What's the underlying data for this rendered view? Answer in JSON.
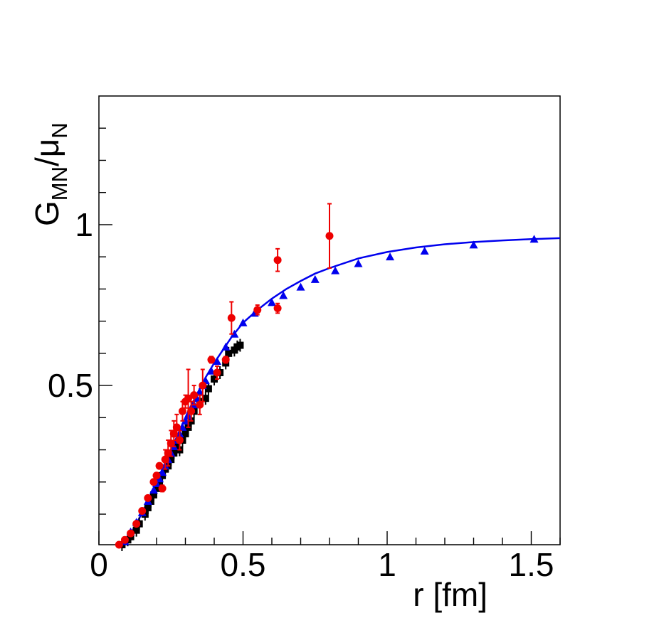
{
  "chart_data": {
    "type": "scatter",
    "title": "",
    "xlabel": "r [fm]",
    "ylabel": {
      "main": "G",
      "sub1": "MN",
      "slash": "/",
      "mu": "μ",
      "sub2": "N"
    },
    "xlim": [
      0,
      1.6
    ],
    "ylim": [
      0.005,
      1.4
    ],
    "x_ticks": [
      0,
      0.5,
      1,
      1.5
    ],
    "x_tick_labels": [
      "0",
      "0.5",
      "1",
      "1.5"
    ],
    "y_ticks": [
      0.5,
      1
    ],
    "y_tick_labels": [
      "0.5",
      "1"
    ],
    "grid": false,
    "series": [
      {
        "name": "fit",
        "kind": "line",
        "color": "#0000ee",
        "x": [
          0.07,
          0.09,
          0.11,
          0.13,
          0.15,
          0.17,
          0.19,
          0.21,
          0.23,
          0.25,
          0.27,
          0.29,
          0.31,
          0.33,
          0.35,
          0.37,
          0.4,
          0.43,
          0.46,
          0.5,
          0.55,
          0.6,
          0.65,
          0.7,
          0.75,
          0.8,
          0.9,
          1.0,
          1.1,
          1.2,
          1.3,
          1.4,
          1.5,
          1.6
        ],
        "y": [
          0.005,
          0.02,
          0.04,
          0.07,
          0.105,
          0.14,
          0.18,
          0.22,
          0.26,
          0.3,
          0.34,
          0.38,
          0.42,
          0.455,
          0.49,
          0.525,
          0.57,
          0.61,
          0.65,
          0.695,
          0.735,
          0.77,
          0.8,
          0.825,
          0.848,
          0.865,
          0.895,
          0.915,
          0.929,
          0.939,
          0.946,
          0.951,
          0.955,
          0.958
        ]
      },
      {
        "name": "blue triangles",
        "kind": "triangle",
        "color": "#0000ee",
        "x": [
          0.09,
          0.11,
          0.13,
          0.15,
          0.17,
          0.19,
          0.2,
          0.21,
          0.22,
          0.23,
          0.24,
          0.25,
          0.26,
          0.27,
          0.28,
          0.29,
          0.3,
          0.31,
          0.32,
          0.33,
          0.34,
          0.35,
          0.36,
          0.37,
          0.39,
          0.41,
          0.44,
          0.47,
          0.5,
          0.54,
          0.6,
          0.64,
          0.7,
          0.75,
          0.82,
          0.9,
          1.01,
          1.13,
          1.3,
          1.51
        ],
        "y": [
          0.015,
          0.045,
          0.075,
          0.105,
          0.14,
          0.175,
          0.195,
          0.21,
          0.23,
          0.25,
          0.27,
          0.29,
          0.31,
          0.33,
          0.35,
          0.37,
          0.39,
          0.405,
          0.425,
          0.44,
          0.46,
          0.48,
          0.5,
          0.515,
          0.545,
          0.575,
          0.62,
          0.66,
          0.695,
          0.725,
          0.758,
          0.78,
          0.806,
          0.83,
          0.857,
          0.879,
          0.9,
          0.918,
          0.937,
          0.955
        ]
      },
      {
        "name": "black squares",
        "kind": "square",
        "color": "#000000",
        "x": [
          0.08,
          0.1,
          0.11,
          0.13,
          0.14,
          0.16,
          0.17,
          0.18,
          0.19,
          0.2,
          0.21,
          0.22,
          0.23,
          0.24,
          0.25,
          0.26,
          0.27,
          0.28,
          0.29,
          0.3,
          0.31,
          0.32,
          0.33,
          0.35,
          0.37,
          0.38,
          0.4,
          0.42,
          0.44,
          0.45,
          0.47,
          0.48,
          0.49
        ],
        "y": [
          0.005,
          0.02,
          0.03,
          0.05,
          0.07,
          0.1,
          0.12,
          0.14,
          0.16,
          0.18,
          0.2,
          0.22,
          0.24,
          0.25,
          0.27,
          0.29,
          0.31,
          0.3,
          0.33,
          0.35,
          0.37,
          0.39,
          0.42,
          0.45,
          0.46,
          0.49,
          0.52,
          0.54,
          0.57,
          0.6,
          0.61,
          0.62,
          0.625
        ]
      },
      {
        "name": "red circles",
        "kind": "circle",
        "color": "#ee0000",
        "x": [
          0.07,
          0.09,
          0.11,
          0.13,
          0.15,
          0.17,
          0.19,
          0.2,
          0.21,
          0.22,
          0.23,
          0.24,
          0.25,
          0.26,
          0.27,
          0.28,
          0.29,
          0.3,
          0.31,
          0.32,
          0.33,
          0.35,
          0.36,
          0.39,
          0.41,
          0.44,
          0.46,
          0.55,
          0.62,
          0.62,
          0.8
        ],
        "y": [
          0.005,
          0.02,
          0.04,
          0.07,
          0.11,
          0.15,
          0.2,
          0.22,
          0.25,
          0.18,
          0.27,
          0.29,
          0.32,
          0.35,
          0.37,
          0.33,
          0.42,
          0.45,
          0.46,
          0.42,
          0.47,
          0.44,
          0.5,
          0.58,
          0.54,
          0.58,
          0.71,
          0.735,
          0.74,
          0.89,
          0.965
        ],
        "err": [
          0,
          0,
          0,
          0,
          0,
          0,
          0,
          0,
          0,
          0.01,
          0.03,
          0.04,
          0.04,
          0.04,
          0.04,
          0.03,
          0.03,
          0.02,
          0.09,
          0.03,
          0.03,
          0.03,
          0.05,
          0.01,
          0.02,
          0.01,
          0.05,
          0.015,
          0.015,
          0.035,
          0.1
        ]
      }
    ]
  }
}
